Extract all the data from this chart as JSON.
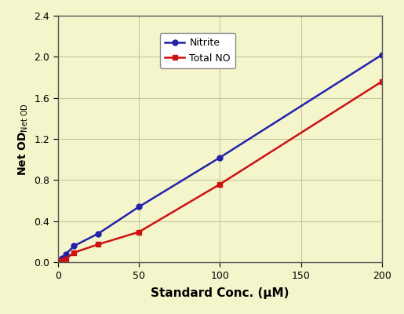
{
  "nitrite_x": [
    0,
    1,
    2.5,
    5,
    10,
    25,
    50,
    100,
    200
  ],
  "nitrite_y": [
    0.0,
    0.02,
    0.04,
    0.08,
    0.16,
    0.28,
    0.54,
    1.02,
    2.02
  ],
  "total_no_x": [
    0,
    1,
    2.5,
    5,
    10,
    25,
    50,
    100,
    200
  ],
  "total_no_y": [
    0.0,
    0.01,
    0.02,
    0.035,
    0.095,
    0.175,
    0.295,
    0.76,
    1.76
  ],
  "nitrite_color": "#2222aa",
  "total_no_color": "#cc1111",
  "background_color": "#f5f5cc",
  "outer_background": "#f0f0f0",
  "xlabel": "Standard Conc. (μM)",
  "xlim": [
    0,
    200
  ],
  "ylim": [
    0.0,
    2.4
  ],
  "xticks": [
    0,
    50,
    100,
    150,
    200
  ],
  "yticks": [
    0.0,
    0.4,
    0.8,
    1.2,
    1.6,
    2.0,
    2.4
  ],
  "legend_nitrite": "Nitrite",
  "legend_total_no": "Total NO",
  "grid_color": "#c8c8a0",
  "spine_color": "#555555"
}
